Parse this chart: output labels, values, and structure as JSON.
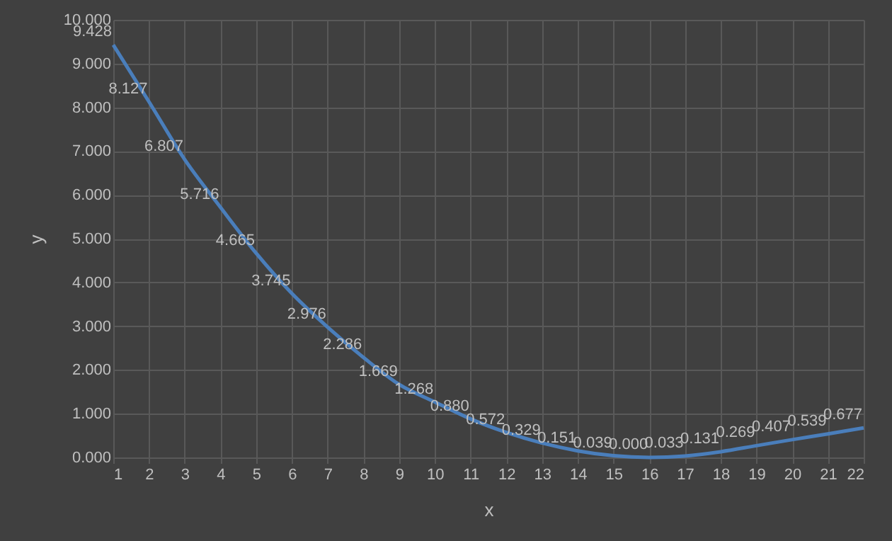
{
  "chart_data": {
    "type": "line",
    "xlabel": "x",
    "ylabel": "y",
    "x": [
      1,
      2,
      3,
      4,
      5,
      6,
      7,
      8,
      9,
      10,
      11,
      12,
      13,
      14,
      15,
      16,
      17,
      18,
      19,
      20,
      21,
      22
    ],
    "series": [
      {
        "color": "#4a7ebb",
        "values": [
          9.428,
          8.127,
          6.807,
          5.716,
          4.665,
          3.745,
          2.976,
          2.286,
          1.669,
          1.268,
          0.88,
          0.572,
          0.329,
          0.151,
          0.039,
          0.0,
          0.033,
          0.131,
          0.269,
          0.407,
          0.539,
          0.677
        ],
        "value_labels": [
          "9.428",
          "8.127",
          "6.807",
          "5.716",
          "4.665",
          "3.745",
          "2.976",
          "2.286",
          "1.669",
          "1.268",
          "0.880",
          "0.572",
          "0.329",
          "0.151",
          "0.039",
          "0.000",
          "0.033",
          "0.131",
          "0.269",
          "0.407",
          "0.539",
          "0.677"
        ]
      }
    ],
    "xlim": [
      1,
      22
    ],
    "xticks": [
      1,
      2,
      3,
      4,
      5,
      6,
      7,
      8,
      9,
      10,
      11,
      12,
      13,
      14,
      15,
      16,
      17,
      18,
      19,
      20,
      21,
      22
    ],
    "ylim": [
      0,
      10
    ],
    "yticks": [
      {
        "value": 0,
        "label": "0.000"
      },
      {
        "value": 1,
        "label": "1.000"
      },
      {
        "value": 2,
        "label": "2.000"
      },
      {
        "value": 3,
        "label": "3.000"
      },
      {
        "value": 4,
        "label": "4.000"
      },
      {
        "value": 5,
        "label": "5.000"
      },
      {
        "value": 6,
        "label": "6.000"
      },
      {
        "value": 7,
        "label": "7.000"
      },
      {
        "value": 8,
        "label": "8.000"
      },
      {
        "value": 9,
        "label": "9.000"
      },
      {
        "value": 10,
        "label": "10.000"
      }
    ],
    "grid": true,
    "legend": false,
    "marker": "none",
    "line_style": "solid"
  }
}
